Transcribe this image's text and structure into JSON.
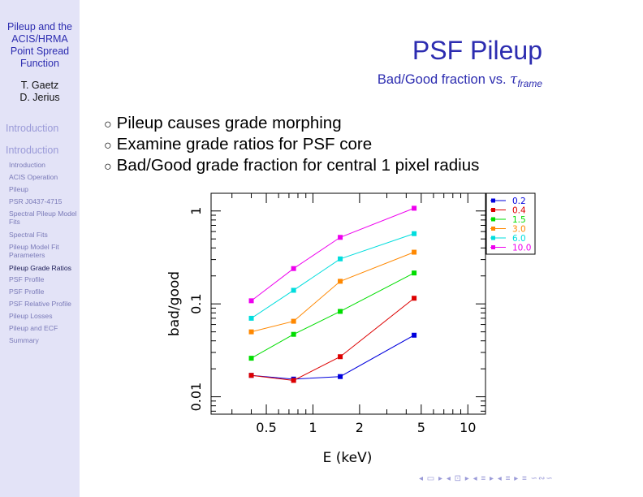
{
  "sidebar": {
    "title_lines": [
      "Pileup and the",
      "ACIS/HRMA",
      "Point Spread",
      "Function"
    ],
    "authors": [
      "T. Gaetz",
      "D. Jerius"
    ],
    "sections": [
      "Introduction",
      "Introduction"
    ],
    "items": [
      "Introduction",
      "ACIS Operation",
      "Pileup",
      "PSR J0437-4715",
      "Spectral Pileup Model Fits",
      "Spectral Fits",
      "Pileup Model Fit Parameters",
      "Pileup Grade Ratios",
      "PSF Profile",
      "PSF Profile",
      "PSF Relative Profile",
      "Pileup Losses",
      "Pileup and ECF",
      "Summary"
    ],
    "active_item": "Pileup Grade Ratios"
  },
  "slide": {
    "title": "PSF Pileup",
    "subtitle_prefix": "Bad/Good fraction vs.",
    "subtitle_symbol": "τ",
    "subtitle_subscript": "frame",
    "bullet_marker": "○",
    "bullets": [
      "Pileup causes grade morphing",
      "Examine grade ratios for PSF core",
      "Bad/Good grade fraction for central 1 pixel radius"
    ]
  },
  "nav": {
    "symbols": "◂ ▭ ▸ ◂ ⊡ ▸ ◂ ≡ ▸ ◂ ≡ ▸ ≡ ∽∾∽"
  },
  "chart_data": {
    "type": "line",
    "xscale": "log",
    "yscale": "log",
    "xlabel": "E (keV)",
    "ylabel": "bad/good",
    "xlim": [
      0.22,
      13.0
    ],
    "ylim": [
      0.0065,
      1.55
    ],
    "xticks": [
      0.5,
      1,
      2,
      5,
      10
    ],
    "xtick_labels": [
      "0.5",
      "1",
      "2",
      "5",
      "10"
    ],
    "yticks": [
      0.01,
      0.1,
      1
    ],
    "ytick_labels": [
      "0.01",
      "0.1",
      "1"
    ],
    "x": [
      0.4,
      0.75,
      1.5,
      4.5
    ],
    "legend_position": "top-right",
    "series": [
      {
        "name": "0.2",
        "color": "#0000dd",
        "values": [
          0.017,
          0.0155,
          0.0165,
          0.046
        ]
      },
      {
        "name": "0.4",
        "color": "#dd0000",
        "values": [
          0.017,
          0.015,
          0.027,
          0.115
        ]
      },
      {
        "name": "1.5",
        "color": "#00dd00",
        "values": [
          0.026,
          0.047,
          0.083,
          0.215
        ]
      },
      {
        "name": "3.0",
        "color": "#ff8800",
        "values": [
          0.05,
          0.065,
          0.175,
          0.36
        ]
      },
      {
        "name": "6.0",
        "color": "#00dddd",
        "values": [
          0.07,
          0.14,
          0.305,
          0.57
        ]
      },
      {
        "name": "10.0",
        "color": "#ee00ee",
        "values": [
          0.108,
          0.24,
          0.52,
          1.07
        ]
      }
    ]
  }
}
